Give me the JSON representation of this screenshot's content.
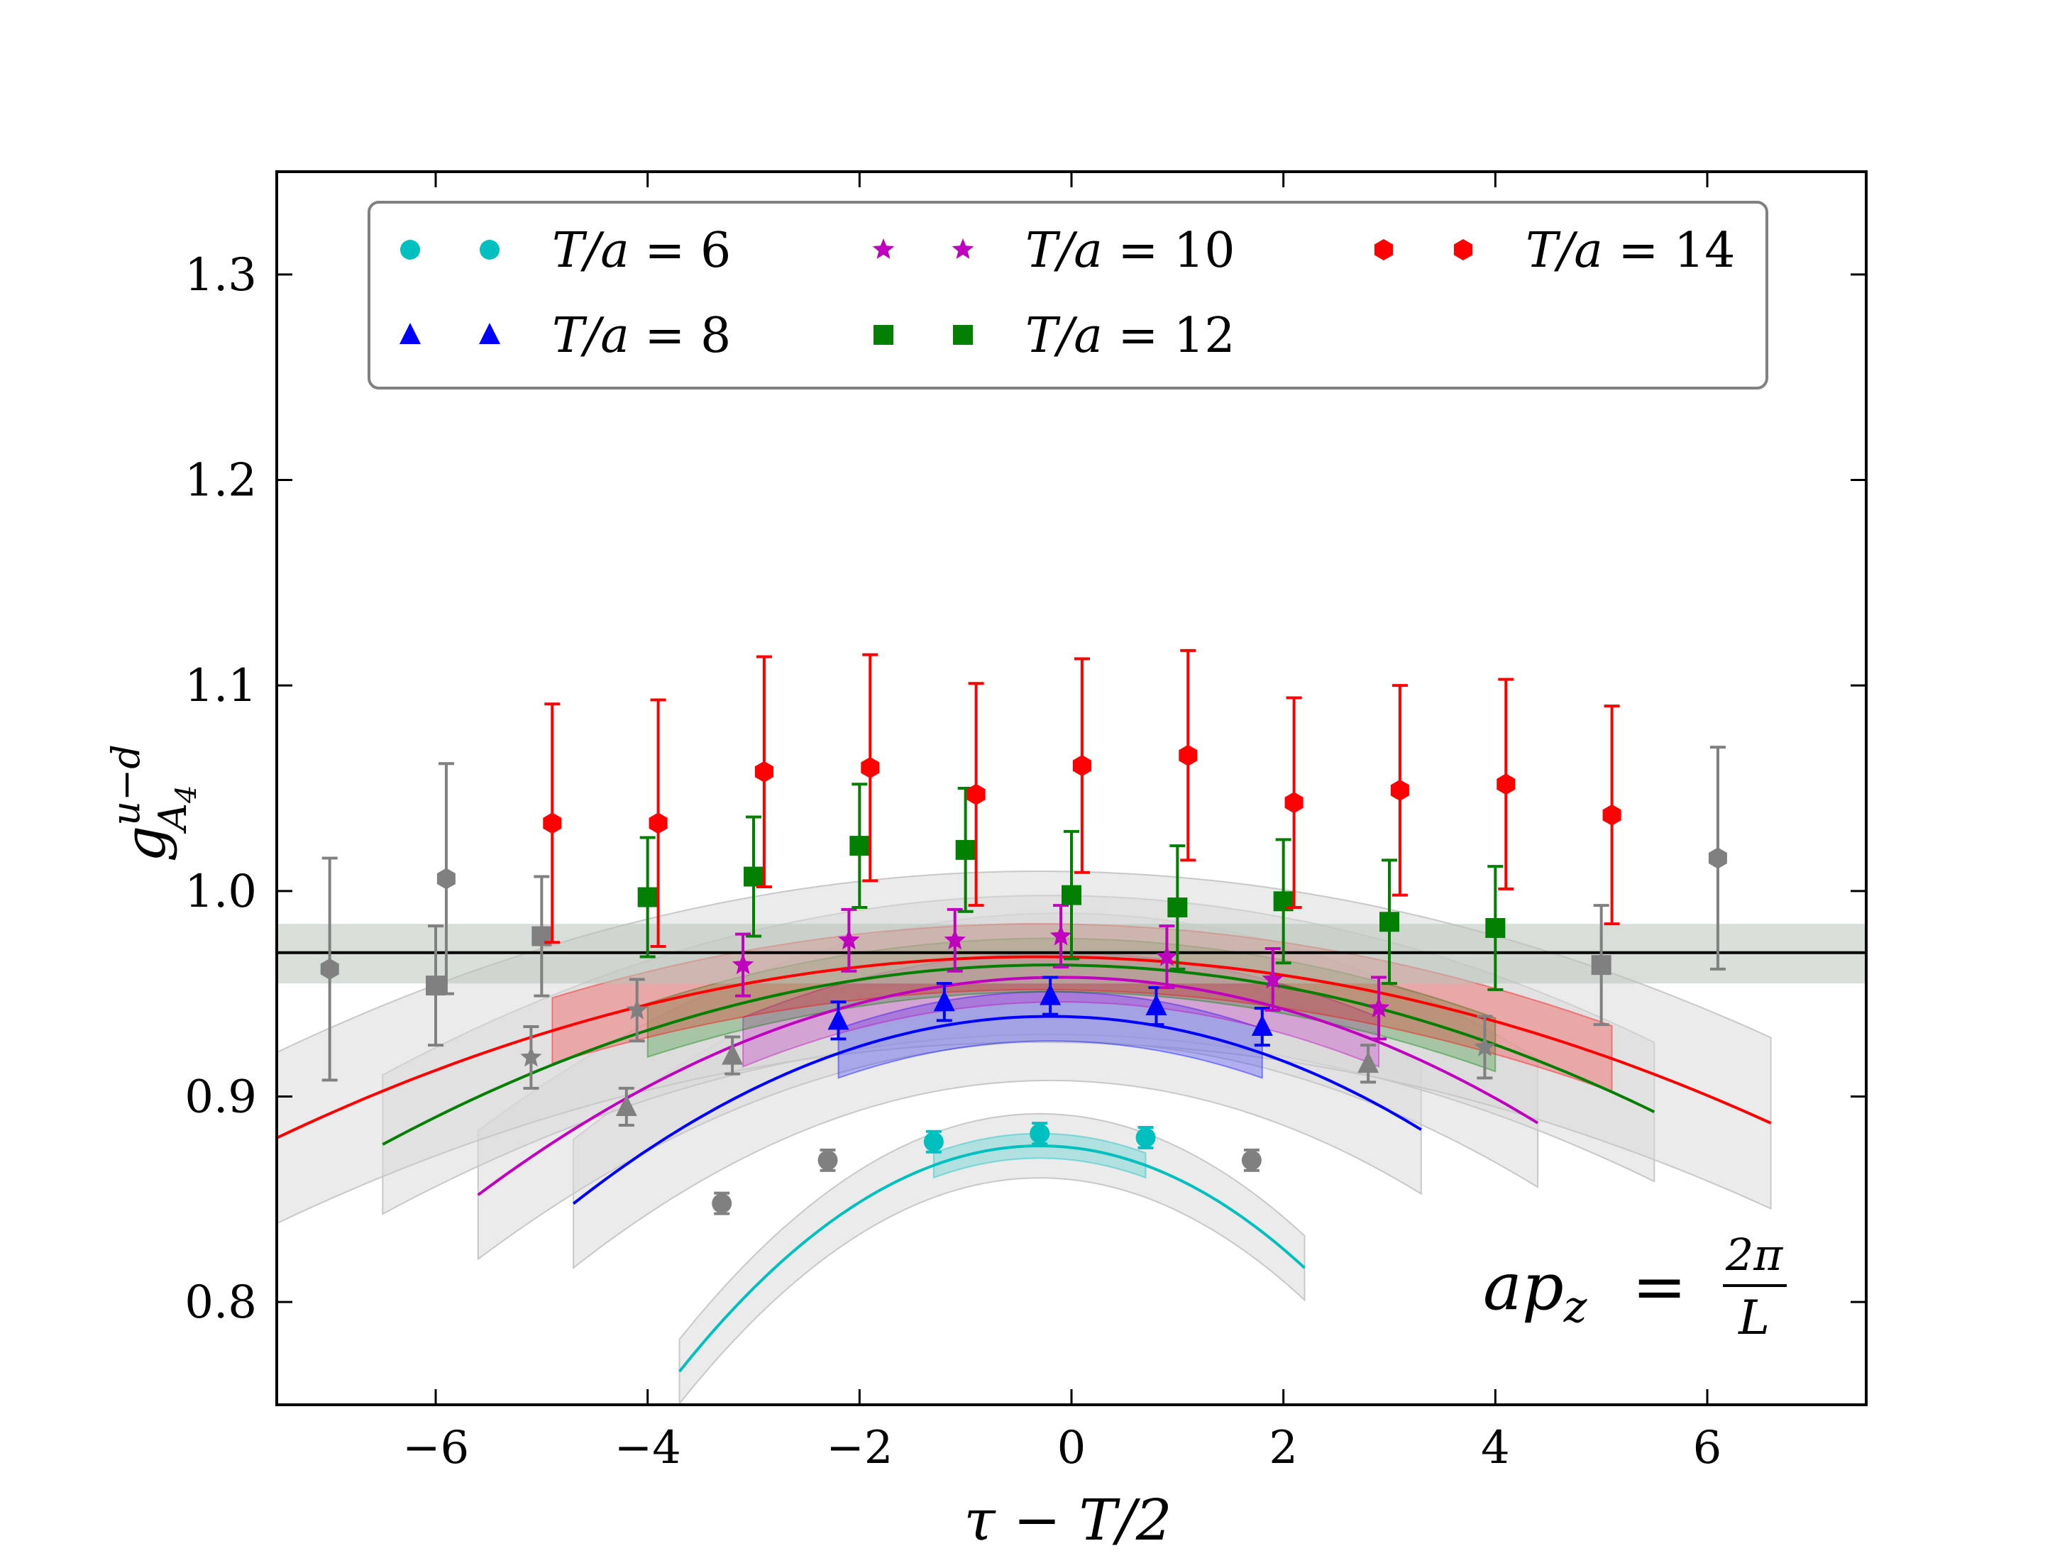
{
  "chart_data": {
    "type": "scatter",
    "title": "",
    "xlabel": "τ − T/2",
    "ylabel": {
      "base": "g",
      "sup": "u−d",
      "sub": "A",
      "subsub": "4"
    },
    "xlim": [
      -7.5,
      7.5
    ],
    "ylim": [
      0.75,
      1.35
    ],
    "xticks": [
      -6,
      -4,
      -2,
      0,
      2,
      4,
      6
    ],
    "xtick_labels": [
      "−6",
      "−4",
      "−2",
      "0",
      "2",
      "4",
      "6"
    ],
    "yticks": [
      0.8,
      0.9,
      1.0,
      1.1,
      1.2,
      1.3
    ],
    "ytick_labels": [
      "0.8",
      "0.9",
      "1.0",
      "1.1",
      "1.2",
      "1.3"
    ],
    "legend_position": "top",
    "annotation": {
      "lhs": "ap",
      "lhs_sub": "z",
      "eq": "=",
      "num": "2π",
      "den": "L"
    },
    "reference": {
      "value": 0.97,
      "band": [
        0.955,
        0.984
      ],
      "color": "#000000",
      "band_color": "#b8c2b8"
    },
    "excluded_color": "#808080",
    "series": [
      {
        "name": "T/a = 6",
        "label_var": "T/a",
        "label_value": "6",
        "color": "#00bfbf",
        "marker": "circle",
        "points": [
          {
            "x": -3.3,
            "y": 0.848,
            "err": 0.005,
            "excluded": true
          },
          {
            "x": -2.3,
            "y": 0.869,
            "err": 0.005,
            "excluded": true
          },
          {
            "x": -1.3,
            "y": 0.878,
            "err": 0.005,
            "excluded": false
          },
          {
            "x": -0.3,
            "y": 0.882,
            "err": 0.005,
            "excluded": false
          },
          {
            "x": 0.7,
            "y": 0.88,
            "err": 0.005,
            "excluded": false
          },
          {
            "x": 1.7,
            "y": 0.869,
            "err": 0.005,
            "excluded": true
          }
        ],
        "fit": {
          "center": -0.3,
          "peak": 0.876,
          "curv": 0.0095,
          "x_range": [
            -3.7,
            2.2
          ],
          "band_half": 0.006,
          "fit_range": [
            -1.3,
            0.7
          ]
        }
      },
      {
        "name": "T/a = 8",
        "label_var": "T/a",
        "label_value": "8",
        "color": "#0000ff",
        "marker": "triangle",
        "points": [
          {
            "x": -4.2,
            "y": 0.895,
            "err": 0.009,
            "excluded": true
          },
          {
            "x": -3.2,
            "y": 0.92,
            "err": 0.009,
            "excluded": true
          },
          {
            "x": -2.2,
            "y": 0.937,
            "err": 0.009,
            "excluded": false
          },
          {
            "x": -1.2,
            "y": 0.946,
            "err": 0.009,
            "excluded": false
          },
          {
            "x": -0.2,
            "y": 0.949,
            "err": 0.009,
            "excluded": false
          },
          {
            "x": 0.8,
            "y": 0.944,
            "err": 0.009,
            "excluded": false
          },
          {
            "x": 1.8,
            "y": 0.934,
            "err": 0.009,
            "excluded": false
          },
          {
            "x": 2.8,
            "y": 0.916,
            "err": 0.009,
            "excluded": true
          }
        ],
        "fit": {
          "center": -0.2,
          "peak": 0.939,
          "curv": 0.0045,
          "x_range": [
            -4.7,
            3.3
          ],
          "band_half": 0.012,
          "fit_range": [
            -2.2,
            1.8
          ]
        }
      },
      {
        "name": "T/a = 10",
        "label_var": "T/a",
        "label_value": "10",
        "color": "#bf00bf",
        "marker": "star",
        "points": [
          {
            "x": -5.1,
            "y": 0.919,
            "err": 0.015,
            "excluded": true
          },
          {
            "x": -4.1,
            "y": 0.942,
            "err": 0.015,
            "excluded": true
          },
          {
            "x": -3.1,
            "y": 0.964,
            "err": 0.015,
            "excluded": false
          },
          {
            "x": -2.1,
            "y": 0.976,
            "err": 0.015,
            "excluded": false
          },
          {
            "x": -1.1,
            "y": 0.976,
            "err": 0.015,
            "excluded": false
          },
          {
            "x": -0.1,
            "y": 0.978,
            "err": 0.015,
            "excluded": false
          },
          {
            "x": 0.9,
            "y": 0.968,
            "err": 0.015,
            "excluded": false
          },
          {
            "x": 1.9,
            "y": 0.957,
            "err": 0.015,
            "excluded": false
          },
          {
            "x": 2.9,
            "y": 0.943,
            "err": 0.015,
            "excluded": false
          },
          {
            "x": 3.9,
            "y": 0.924,
            "err": 0.015,
            "excluded": true
          }
        ],
        "fit": {
          "center": -0.1,
          "peak": 0.958,
          "curv": 0.0035,
          "x_range": [
            -5.6,
            4.4
          ],
          "band_half": 0.012,
          "fit_range": [
            -3.1,
            2.9
          ]
        }
      },
      {
        "name": "T/a = 12",
        "label_var": "T/a",
        "label_value": "12",
        "color": "#007f00",
        "marker": "square",
        "points": [
          {
            "x": -6.0,
            "y": 0.954,
            "err": 0.029,
            "excluded": true
          },
          {
            "x": -5.0,
            "y": 0.978,
            "err": 0.029,
            "excluded": true
          },
          {
            "x": -4.0,
            "y": 0.997,
            "err": 0.029,
            "excluded": false
          },
          {
            "x": -3.0,
            "y": 1.007,
            "err": 0.029,
            "excluded": false
          },
          {
            "x": -2.0,
            "y": 1.022,
            "err": 0.03,
            "excluded": false
          },
          {
            "x": -1.0,
            "y": 1.02,
            "err": 0.03,
            "excluded": false
          },
          {
            "x": 0.0,
            "y": 0.998,
            "err": 0.031,
            "excluded": false
          },
          {
            "x": 1.0,
            "y": 0.992,
            "err": 0.03,
            "excluded": false
          },
          {
            "x": 2.0,
            "y": 0.995,
            "err": 0.03,
            "excluded": false
          },
          {
            "x": 3.0,
            "y": 0.985,
            "err": 0.03,
            "excluded": false
          },
          {
            "x": 4.0,
            "y": 0.982,
            "err": 0.03,
            "excluded": false
          },
          {
            "x": 5.0,
            "y": 0.964,
            "err": 0.029,
            "excluded": true
          }
        ],
        "fit": {
          "center": -0.2,
          "peak": 0.964,
          "curv": 0.0022,
          "x_range": [
            -6.5,
            5.5
          ],
          "band_half": 0.013,
          "fit_range": [
            -4.0,
            4.0
          ]
        }
      },
      {
        "name": "T/a = 14",
        "label_var": "T/a",
        "label_value": "14",
        "color": "#ff0000",
        "marker": "hexagon",
        "points": [
          {
            "x": -7.0,
            "y": 0.962,
            "err": 0.054,
            "excluded": true
          },
          {
            "x": -5.9,
            "y": 1.006,
            "err": 0.056,
            "excluded": true
          },
          {
            "x": -4.9,
            "y": 1.033,
            "err": 0.058,
            "excluded": false
          },
          {
            "x": -3.9,
            "y": 1.033,
            "err": 0.06,
            "excluded": false
          },
          {
            "x": -2.9,
            "y": 1.058,
            "err": 0.056,
            "excluded": false
          },
          {
            "x": -1.9,
            "y": 1.06,
            "err": 0.055,
            "excluded": false
          },
          {
            "x": -0.9,
            "y": 1.047,
            "err": 0.054,
            "excluded": false
          },
          {
            "x": 0.1,
            "y": 1.061,
            "err": 0.052,
            "excluded": false
          },
          {
            "x": 1.1,
            "y": 1.066,
            "err": 0.051,
            "excluded": false
          },
          {
            "x": 2.1,
            "y": 1.043,
            "err": 0.051,
            "excluded": false
          },
          {
            "x": 3.1,
            "y": 1.049,
            "err": 0.051,
            "excluded": false
          },
          {
            "x": 4.1,
            "y": 1.052,
            "err": 0.051,
            "excluded": false
          },
          {
            "x": 5.1,
            "y": 1.037,
            "err": 0.053,
            "excluded": false
          },
          {
            "x": 6.1,
            "y": 1.016,
            "err": 0.054,
            "excluded": true
          }
        ],
        "fit": {
          "center": -0.3,
          "peak": 0.968,
          "curv": 0.0017,
          "x_range": [
            -7.5,
            6.6
          ],
          "band_half": 0.016,
          "fit_range": [
            -4.9,
            5.1
          ]
        }
      }
    ]
  }
}
